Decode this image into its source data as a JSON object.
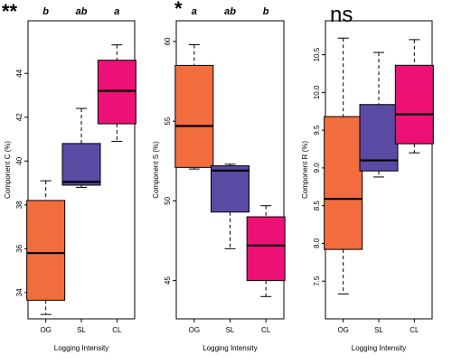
{
  "figure": {
    "xlabel": "Logging Intensity",
    "colors": {
      "OG": "#f26d3d",
      "SL": "#5b4aa3",
      "CL": "#ed1175",
      "whisker": "#000000",
      "median": "#000000"
    }
  },
  "chart_data": [
    {
      "type": "box",
      "significance": "**",
      "xlabel": "Logging Intensity",
      "ylabel": "Component C (%)",
      "ylim": [
        32.8,
        46.4
      ],
      "yticks": [
        "34",
        "36",
        "38",
        "40",
        "42",
        "44"
      ],
      "categories": [
        "OG",
        "SL",
        "CL"
      ],
      "letters": [
        "b",
        "ab",
        "a"
      ],
      "boxes": [
        {
          "min": 33.0,
          "q1": 33.65,
          "median": 35.8,
          "q3": 38.2,
          "max": 39.1
        },
        {
          "min": 38.8,
          "q1": 38.9,
          "median": 39.05,
          "q3": 40.8,
          "max": 42.4
        },
        {
          "min": 40.9,
          "q1": 41.7,
          "median": 43.2,
          "q3": 44.6,
          "max": 45.3
        }
      ]
    },
    {
      "type": "box",
      "significance": "*",
      "xlabel": "Logging Intensity",
      "ylabel": "Component S (%)",
      "ylim": [
        42.6,
        61.3
      ],
      "yticks": [
        "45",
        "50",
        "55",
        "60"
      ],
      "categories": [
        "OG",
        "SL",
        "CL"
      ],
      "letters": [
        "a",
        "ab",
        "b"
      ],
      "boxes": [
        {
          "min": 52.0,
          "q1": 52.1,
          "median": 54.7,
          "q3": 58.5,
          "max": 59.8
        },
        {
          "min": 47.0,
          "q1": 49.3,
          "median": 51.9,
          "q3": 52.2,
          "max": 52.3
        },
        {
          "min": 44.0,
          "q1": 45.0,
          "median": 47.2,
          "q3": 49.0,
          "max": 49.7
        }
      ]
    },
    {
      "type": "box",
      "significance": "ns",
      "xlabel": "Logging Intensity",
      "ylabel": "Component R (%)",
      "ylim": [
        7.0,
        10.95
      ],
      "yticks": [
        "7.5",
        "8.0",
        "8.5",
        "9.0",
        "9.5",
        "10.0",
        "10.5"
      ],
      "categories": [
        "OG",
        "SL",
        "CL"
      ],
      "letters": [],
      "boxes": [
        {
          "min": 7.33,
          "q1": 7.92,
          "median": 8.59,
          "q3": 9.68,
          "max": 10.72
        },
        {
          "min": 8.88,
          "q1": 8.96,
          "median": 9.1,
          "q3": 9.84,
          "max": 10.53
        },
        {
          "min": 9.2,
          "q1": 9.32,
          "median": 9.71,
          "q3": 10.36,
          "max": 10.7
        }
      ]
    }
  ]
}
